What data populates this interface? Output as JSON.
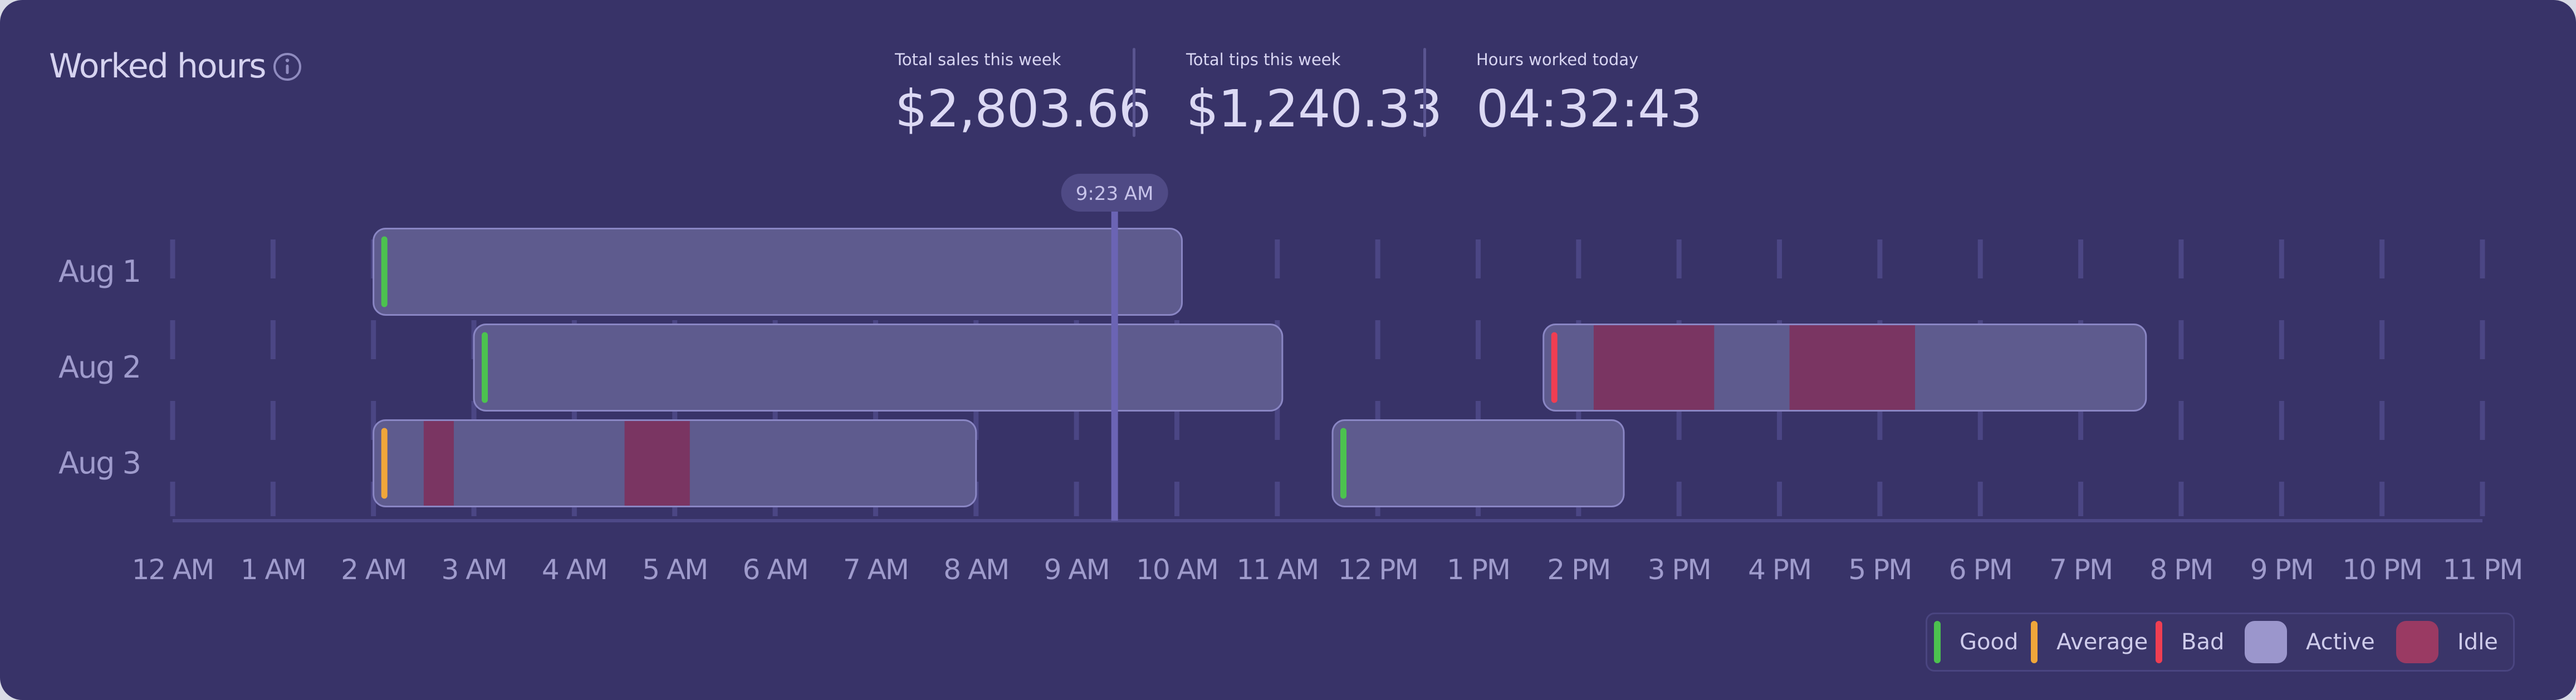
{
  "header": {
    "title": "Worked hours",
    "info_icon": "info-icon",
    "stats": [
      {
        "label": "Total sales this week",
        "value": "$2,803.66"
      },
      {
        "label": "Total tips this week",
        "value": "$1,240.33"
      },
      {
        "label": "Hours worked today",
        "value": "04:32:43"
      }
    ]
  },
  "colors": {
    "background": "#383368",
    "good": "#4cc24f",
    "average": "#f0a63a",
    "bad": "#f03e52",
    "active": "#5e5b8e",
    "idle": "#7a3562",
    "now_line": "#6b64b4",
    "text": "#9f9bcc"
  },
  "chart_data": {
    "type": "timeline",
    "x_unit": "hour of day",
    "xlim": [
      0,
      23
    ],
    "tick_labels": [
      "12 AM",
      "1 AM",
      "2 AM",
      "3 AM",
      "4 AM",
      "5 AM",
      "6 AM",
      "7 AM",
      "8 AM",
      "9 AM",
      "10 AM",
      "11 AM",
      "12 PM",
      "1 PM",
      "2 PM",
      "3 PM",
      "4 PM",
      "5 PM",
      "6 PM",
      "7 PM",
      "8 PM",
      "9 PM",
      "10 PM",
      "11 PM"
    ],
    "current_time": {
      "label": "9:23 AM",
      "hour": 9.38
    },
    "rows": [
      {
        "label": "Aug 1",
        "shifts": [
          {
            "start": 2.0,
            "end": 10.05,
            "rating": "good",
            "idle": []
          }
        ]
      },
      {
        "label": "Aug 2",
        "shifts": [
          {
            "start": 3.0,
            "end": 11.05,
            "rating": "good",
            "idle": []
          },
          {
            "start": 13.65,
            "end": 19.65,
            "rating": "bad",
            "idle": [
              [
                14.15,
                15.35
              ],
              [
                16.1,
                17.35
              ]
            ]
          }
        ]
      },
      {
        "label": "Aug 3",
        "shifts": [
          {
            "start": 2.0,
            "end": 8.0,
            "rating": "average",
            "idle": [
              [
                2.5,
                2.8
              ],
              [
                4.5,
                5.15
              ]
            ]
          },
          {
            "start": 11.55,
            "end": 14.45,
            "rating": "good",
            "idle": []
          }
        ]
      }
    ],
    "legend": [
      {
        "label": "Good",
        "kind": "bar",
        "color": "#4cc24f"
      },
      {
        "label": "Average",
        "kind": "bar",
        "color": "#f0a63a"
      },
      {
        "label": "Bad",
        "kind": "bar",
        "color": "#f03e52"
      },
      {
        "label": "Active",
        "kind": "swatch",
        "color": "#9b96cc"
      },
      {
        "label": "Idle",
        "kind": "swatch",
        "color": "#9a3a63"
      }
    ]
  }
}
